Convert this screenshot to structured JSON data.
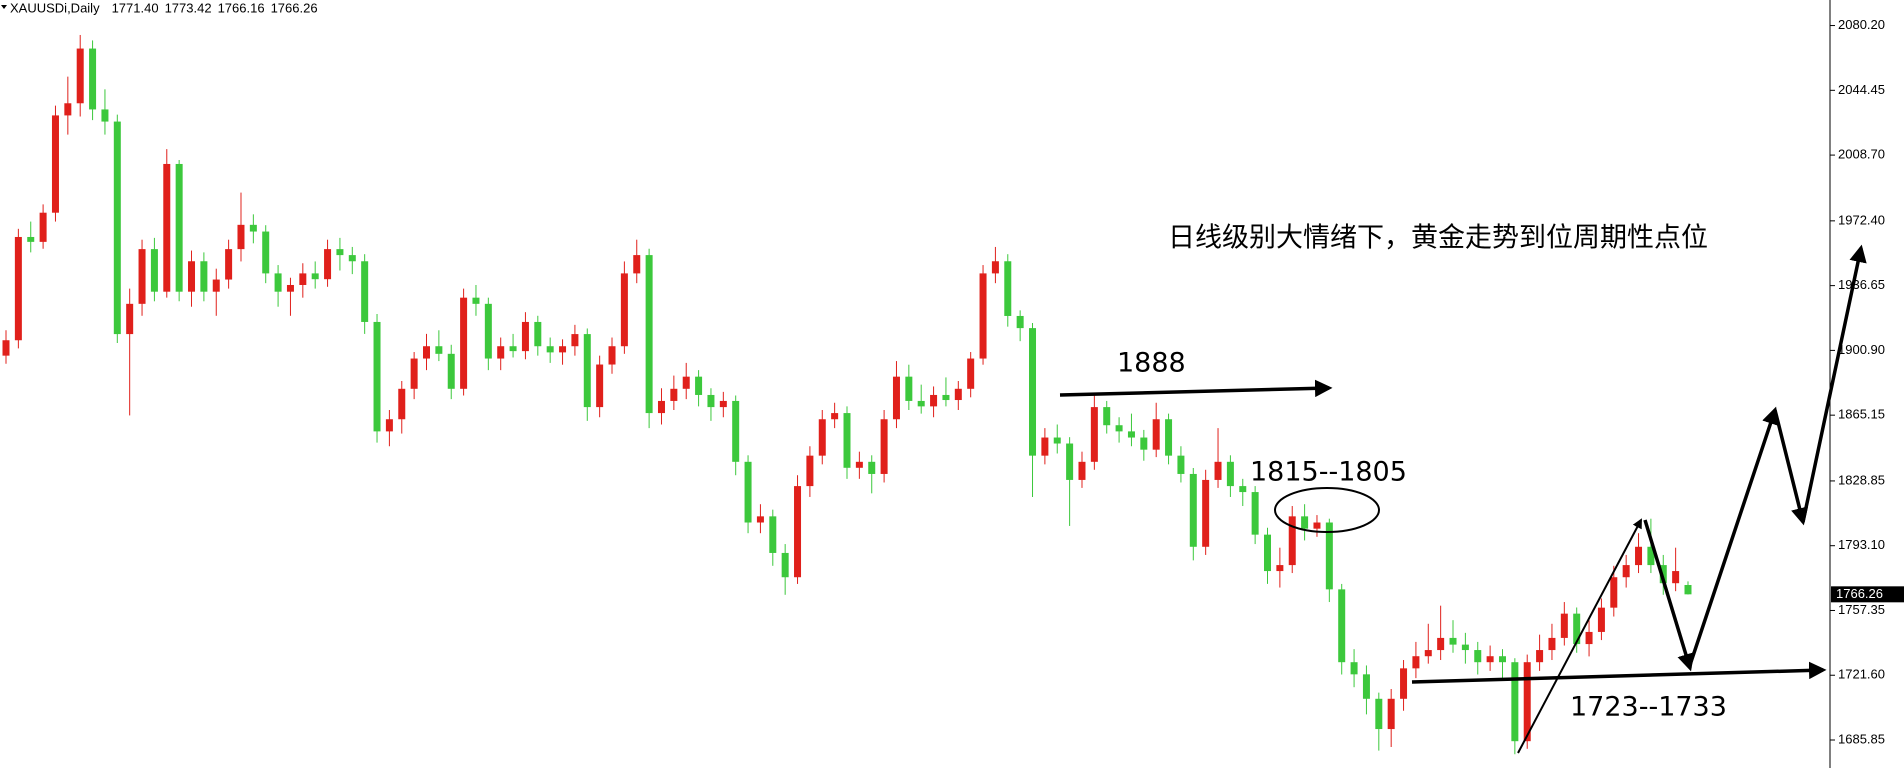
{
  "chart_data": {
    "type": "candlestick",
    "symbol": "XAUUSDi,Daily",
    "header_ohlc": [
      {
        "value": 1771.4,
        "label": "1771.40"
      },
      1773.42,
      1766.16,
      1766.26
    ],
    "last_price": 1766.26,
    "up_color": "#e0201b",
    "down_color": "#3cc83c",
    "ylim": [
      1670.4,
      2094.3
    ],
    "yticks": [
      {
        "value": 2080.2,
        "label": "2080.20"
      },
      2044.45,
      {
        "value": 2008.7,
        "label": "2008.70"
      },
      {
        "value": 1972.4,
        "label": "1972.40"
      },
      1936.65,
      {
        "value": 1900.9,
        "label": "1900.90"
      },
      1865.15,
      1828.85,
      {
        "value": 1793.1,
        "label": "1793.10"
      },
      1757.35,
      {
        "value": 1721.6,
        "label": "1721.60"
      },
      1685.85
    ],
    "annotations": [
      "日线级别大情绪下，黄金走势到位周期性点位",
      "1888",
      "1815--1805",
      "1723--1733"
    ],
    "ohlc": [
      [
        1898.0,
        1912.0,
        1893.5,
        1906.5
      ],
      [
        1906.5,
        1968.0,
        1902.0,
        1963.5
      ],
      [
        1963.5,
        1972.0,
        1955.0,
        1960.8
      ],
      [
        1960.8,
        1981.5,
        1957.0,
        1976.9
      ],
      [
        1976.9,
        2036.0,
        1972.0,
        2030.6
      ],
      [
        2030.6,
        2052.0,
        2020.0,
        2037.3
      ],
      [
        2037.3,
        2075.0,
        2030.0,
        2067.5
      ],
      [
        2067.5,
        2072.0,
        2028.0,
        2033.9
      ],
      [
        2033.9,
        2045.0,
        2020.0,
        2027.2
      ],
      [
        2027.2,
        2031.0,
        1905.0,
        1909.9
      ],
      [
        1909.9,
        1935.0,
        1865.0,
        1926.6
      ],
      [
        1926.6,
        1962.0,
        1920.0,
        1956.8
      ],
      [
        1956.8,
        1963.0,
        1928.0,
        1933.3
      ],
      [
        1933.3,
        2012.0,
        1930.0,
        2003.8
      ],
      [
        2003.8,
        2006.0,
        1928.0,
        1933.3
      ],
      [
        1933.3,
        1956.0,
        1925.0,
        1950.1
      ],
      [
        1950.1,
        1955.0,
        1928.0,
        1933.3
      ],
      [
        1933.3,
        1946.0,
        1920.0,
        1940.0
      ],
      [
        1940.0,
        1962.0,
        1935.0,
        1956.8
      ],
      [
        1956.8,
        1988.0,
        1950.0,
        1970.2
      ],
      [
        1970.2,
        1976.0,
        1960.0,
        1966.5
      ],
      [
        1966.5,
        1970.0,
        1938.0,
        1943.4
      ],
      [
        1943.4,
        1948.0,
        1925.0,
        1933.3
      ],
      [
        1933.3,
        1941.0,
        1920.0,
        1937.0
      ],
      [
        1937.0,
        1949.0,
        1930.0,
        1943.4
      ],
      [
        1943.4,
        1950.0,
        1935.0,
        1940.2
      ],
      [
        1940.2,
        1962.0,
        1936.0,
        1956.8
      ],
      [
        1956.8,
        1963.0,
        1945.0,
        1953.5
      ],
      [
        1953.5,
        1958.0,
        1943.0,
        1950.1
      ],
      [
        1950.1,
        1954.0,
        1910.0,
        1916.6
      ],
      [
        1916.6,
        1921.0,
        1850.0,
        1856.2
      ],
      [
        1856.2,
        1868.0,
        1848.0,
        1862.9
      ],
      [
        1862.9,
        1884.0,
        1855.0,
        1879.7
      ],
      [
        1879.7,
        1900.0,
        1874.0,
        1896.4
      ],
      [
        1896.4,
        1910.0,
        1890.0,
        1903.2
      ],
      [
        1903.2,
        1912.0,
        1895.0,
        1899.0
      ],
      [
        1899.0,
        1904.0,
        1874.0,
        1879.7
      ],
      [
        1879.7,
        1935.0,
        1876.0,
        1930.0
      ],
      [
        1930.0,
        1937.0,
        1920.0,
        1926.6
      ],
      [
        1926.6,
        1930.0,
        1890.0,
        1896.4
      ],
      [
        1896.4,
        1908.0,
        1890.0,
        1903.2
      ],
      [
        1903.2,
        1910.0,
        1897.0,
        1900.5
      ],
      [
        1900.5,
        1922.0,
        1896.0,
        1916.6
      ],
      [
        1916.6,
        1920.0,
        1898.0,
        1903.2
      ],
      [
        1903.2,
        1908.0,
        1894.0,
        1899.8
      ],
      [
        1899.8,
        1907.0,
        1893.0,
        1903.2
      ],
      [
        1903.2,
        1915.0,
        1898.0,
        1909.9
      ],
      [
        1909.9,
        1913.0,
        1862.0,
        1869.6
      ],
      [
        1869.6,
        1898.0,
        1864.0,
        1893.1
      ],
      [
        1893.1,
        1908.0,
        1888.0,
        1903.2
      ],
      [
        1903.2,
        1950.0,
        1899.0,
        1943.4
      ],
      [
        1943.4,
        1962.0,
        1938.0,
        1953.5
      ],
      [
        1953.5,
        1957.0,
        1858.0,
        1866.3
      ],
      [
        1866.3,
        1880.0,
        1860.0,
        1873.0
      ],
      [
        1873.0,
        1887.0,
        1868.0,
        1879.7
      ],
      [
        1879.7,
        1894.0,
        1874.0,
        1886.4
      ],
      [
        1886.4,
        1890.0,
        1870.0,
        1876.3
      ],
      [
        1876.3,
        1880.0,
        1862.0,
        1869.6
      ],
      [
        1869.6,
        1878.0,
        1864.0,
        1873.0
      ],
      [
        1873.0,
        1876.0,
        1832.0,
        1839.4
      ],
      [
        1839.4,
        1843.0,
        1800.0,
        1805.9
      ],
      [
        1805.9,
        1816.0,
        1800.0,
        1809.3
      ],
      [
        1809.3,
        1813.0,
        1782.0,
        1789.1
      ],
      [
        1789.1,
        1794.0,
        1766.0,
        1775.7
      ],
      [
        1775.7,
        1832.0,
        1772.0,
        1826.0
      ],
      [
        1826.0,
        1848.0,
        1820.0,
        1842.8
      ],
      [
        1842.8,
        1868.0,
        1838.0,
        1862.9
      ],
      [
        1862.9,
        1872.0,
        1858.0,
        1866.3
      ],
      [
        1866.3,
        1870.0,
        1830.0,
        1836.1
      ],
      [
        1836.1,
        1845.0,
        1830.0,
        1839.4
      ],
      [
        1839.4,
        1843.0,
        1822.0,
        1832.7
      ],
      [
        1832.7,
        1868.0,
        1828.0,
        1862.9
      ],
      [
        1862.9,
        1895.0,
        1858.0,
        1886.4
      ],
      [
        1886.4,
        1893.0,
        1868.0,
        1873.0
      ],
      [
        1873.0,
        1882.0,
        1866.0,
        1870.0
      ],
      [
        1870.0,
        1881.0,
        1864.0,
        1876.3
      ],
      [
        1876.3,
        1886.0,
        1870.0,
        1873.5
      ],
      [
        1873.5,
        1884.0,
        1868.0,
        1879.7
      ],
      [
        1879.7,
        1900.0,
        1875.0,
        1896.4
      ],
      [
        1896.4,
        1948.0,
        1893.0,
        1943.4
      ],
      [
        1943.4,
        1958.0,
        1938.0,
        1950.1
      ],
      [
        1950.1,
        1954.0,
        1914.0,
        1919.9
      ],
      [
        1919.9,
        1923.0,
        1906.0,
        1913.2
      ],
      [
        1913.2,
        1916.0,
        1820.0,
        1842.8
      ],
      [
        1842.8,
        1858.0,
        1838.0,
        1852.8
      ],
      [
        1852.8,
        1860.0,
        1844.0,
        1849.5
      ],
      [
        1849.5,
        1853.0,
        1804.0,
        1829.4
      ],
      [
        1829.4,
        1845.0,
        1825.0,
        1839.4
      ],
      [
        1839.4,
        1876.0,
        1835.0,
        1869.6
      ],
      [
        1869.6,
        1873.0,
        1855.0,
        1859.6
      ],
      [
        1859.6,
        1864.0,
        1850.0,
        1856.2
      ],
      [
        1856.2,
        1866.0,
        1848.0,
        1852.8
      ],
      [
        1852.8,
        1857.0,
        1840.0,
        1846.1
      ],
      [
        1846.1,
        1872.0,
        1842.0,
        1862.9
      ],
      [
        1862.9,
        1866.0,
        1838.0,
        1842.8
      ],
      [
        1842.8,
        1848.0,
        1828.0,
        1832.7
      ],
      [
        1832.7,
        1836.0,
        1785.0,
        1792.5
      ],
      [
        1792.5,
        1835.0,
        1788.0,
        1829.4
      ],
      [
        1829.4,
        1858.0,
        1825.0,
        1839.4
      ],
      [
        1839.4,
        1843.0,
        1820.0,
        1826.0
      ],
      [
        1826.0,
        1830.0,
        1815.0,
        1822.7
      ],
      [
        1822.7,
        1826.0,
        1794.0,
        1799.2
      ],
      [
        1799.2,
        1803.0,
        1772.0,
        1779.1
      ],
      [
        1779.1,
        1792.0,
        1770.0,
        1782.4
      ],
      [
        1782.4,
        1815.0,
        1778.0,
        1809.3
      ],
      [
        1809.3,
        1816.0,
        1796.0,
        1802.5
      ],
      [
        1802.5,
        1810.0,
        1798.0,
        1805.9
      ],
      [
        1805.9,
        1808.0,
        1762.0,
        1769.0
      ],
      [
        1769.0,
        1772.0,
        1722.0,
        1728.8
      ],
      [
        1728.8,
        1736.0,
        1715.0,
        1722.1
      ],
      [
        1722.1,
        1727.0,
        1700.0,
        1708.6
      ],
      [
        1708.6,
        1712.0,
        1680.0,
        1691.9
      ],
      [
        1691.9,
        1714.0,
        1682.0,
        1708.6
      ],
      [
        1708.6,
        1730.0,
        1702.0,
        1725.4
      ],
      [
        1725.4,
        1740.0,
        1720.0,
        1732.1
      ],
      [
        1732.1,
        1750.0,
        1728.0,
        1735.5
      ],
      [
        1735.5,
        1760.0,
        1730.0,
        1742.2
      ],
      [
        1742.2,
        1752.0,
        1734.0,
        1738.5
      ],
      [
        1738.5,
        1745.0,
        1728.0,
        1735.5
      ],
      [
        1735.5,
        1740.0,
        1722.0,
        1728.8
      ],
      [
        1728.8,
        1738.0,
        1724.0,
        1732.1
      ],
      [
        1732.1,
        1736.0,
        1720.0,
        1728.8
      ],
      [
        1728.8,
        1731.0,
        1678.0,
        1685.2
      ],
      [
        1685.2,
        1733.0,
        1681.0,
        1728.8
      ],
      [
        1728.8,
        1744.0,
        1724.0,
        1735.5
      ],
      [
        1735.5,
        1750.0,
        1730.0,
        1742.2
      ],
      [
        1742.2,
        1762.0,
        1738.0,
        1755.6
      ],
      [
        1755.6,
        1759.0,
        1734.0,
        1738.8
      ],
      [
        1738.8,
        1752.0,
        1732.0,
        1745.5
      ],
      [
        1745.5,
        1764.0,
        1741.0,
        1758.9
      ],
      [
        1758.9,
        1782.0,
        1754.0,
        1775.7
      ],
      [
        1775.7,
        1788.0,
        1770.0,
        1782.4
      ],
      [
        1782.4,
        1800.0,
        1778.0,
        1792.5
      ],
      [
        1792.5,
        1808.0,
        1778.0,
        1782.4
      ],
      [
        1782.4,
        1788.0,
        1766.0,
        1772.4
      ],
      [
        1772.4,
        1792.0,
        1768.0,
        1779.1
      ],
      [
        1771.4,
        1773.42,
        1766.16,
        1766.26
      ]
    ]
  }
}
